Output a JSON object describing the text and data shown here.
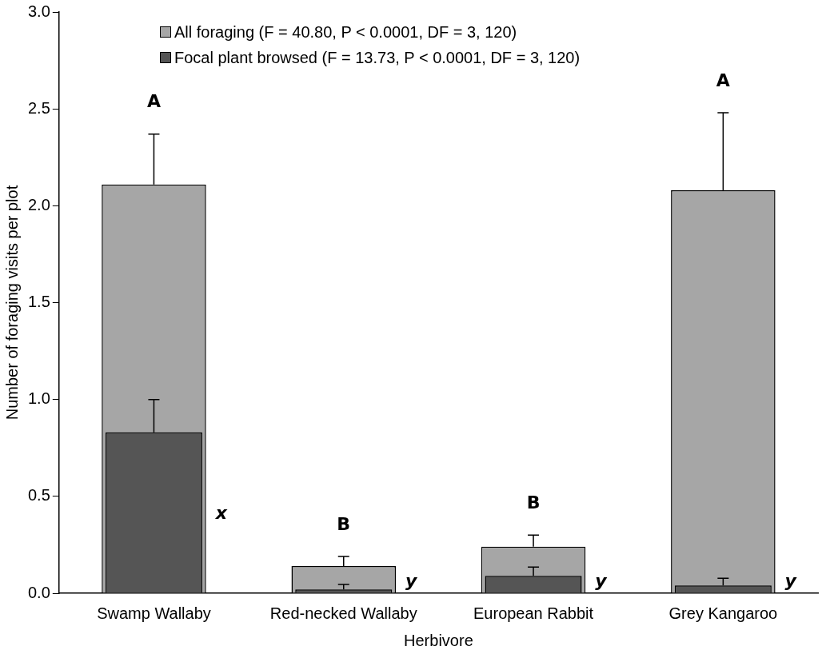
{
  "chart_data": {
    "type": "bar",
    "xlabel": "Herbivore",
    "ylabel": "Number of foraging visits per plot",
    "categories": [
      "Swamp Wallaby",
      "Red-necked Wallaby",
      "European Rabbit",
      "Grey Kangaroo"
    ],
    "series": [
      {
        "name": "All foraging (F = 40.80, P < 0.0001, DF = 3, 120)",
        "color": "#a6a6a6",
        "values": [
          2.11,
          0.14,
          0.24,
          2.08
        ],
        "errors": [
          [
            2.11,
            2.37
          ],
          [
            0.14,
            0.19
          ],
          [
            0.24,
            0.3
          ],
          [
            2.08,
            2.48
          ]
        ]
      },
      {
        "name": "Focal plant browsed (F = 13.73, P < 0.0001, DF = 3, 120)",
        "color": "#555555",
        "values": [
          0.83,
          0.02,
          0.09,
          0.04
        ],
        "errors": [
          [
            0.83,
            1.0
          ],
          [
            0.02,
            0.045
          ],
          [
            0.09,
            0.135
          ],
          [
            0.04,
            0.077
          ]
        ]
      }
    ],
    "ylim": [
      0,
      3
    ],
    "yticks": [
      {
        "value": 0,
        "label": "0.0"
      },
      {
        "value": 0.5,
        "label": "0.5"
      },
      {
        "value": 1,
        "label": "1.0"
      },
      {
        "value": 1.5,
        "label": "1.5"
      },
      {
        "value": 2,
        "label": "2.0"
      },
      {
        "value": 2.5,
        "label": "2.5"
      },
      {
        "value": 3,
        "label": "3.0"
      }
    ],
    "annotations": [
      "A",
      "B",
      "B",
      "A",
      "x",
      "y",
      "y",
      "y"
    ],
    "grid": false,
    "legend": "top"
  }
}
